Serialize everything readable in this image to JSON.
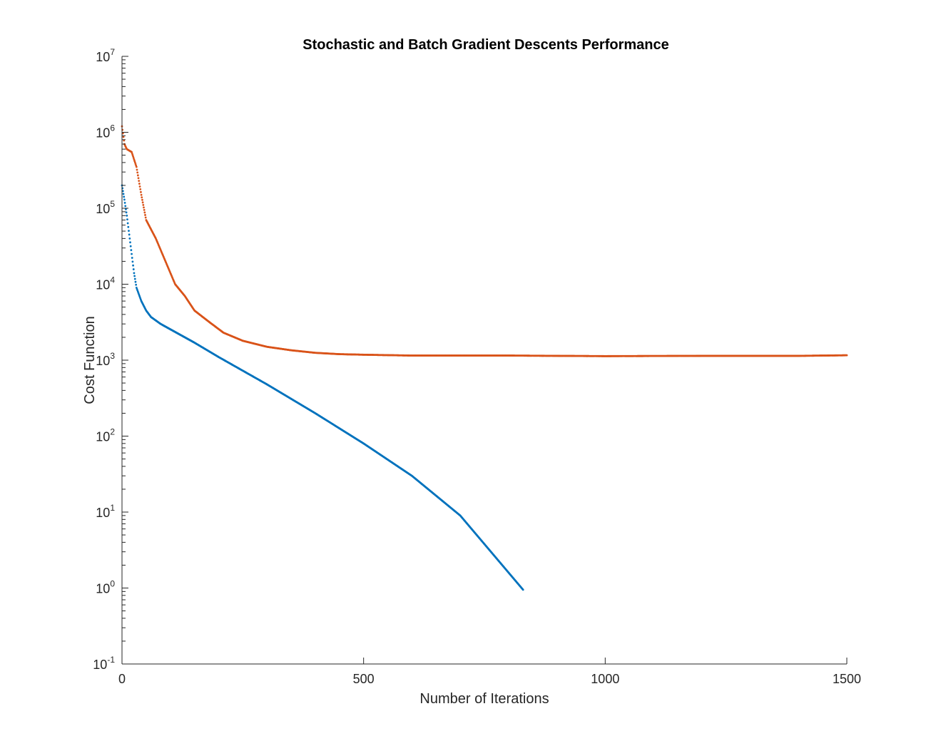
{
  "chart_data": {
    "type": "scatter",
    "title": "Stochastic and Batch Gradient Descents Performance",
    "xlabel": "Number of Iterations",
    "ylabel": "Cost Function",
    "xlim": [
      0,
      1500
    ],
    "ylim": [
      0.1,
      10000000
    ],
    "yscale": "log",
    "grid": false,
    "legend": "none",
    "x_ticks": [
      "0",
      "500",
      "1000",
      "1500"
    ],
    "y_ticks": [
      {
        "base": "10",
        "exp": "7"
      },
      {
        "base": "10",
        "exp": "6"
      },
      {
        "base": "10",
        "exp": "5"
      },
      {
        "base": "10",
        "exp": "4"
      },
      {
        "base": "10",
        "exp": "3"
      },
      {
        "base": "10",
        "exp": "2"
      },
      {
        "base": "10",
        "exp": "1"
      },
      {
        "base": "10",
        "exp": "0"
      },
      {
        "base": "10",
        "exp": "-1"
      }
    ],
    "series": [
      {
        "color": "#0072BD",
        "marker": "dot",
        "points": [
          [
            0,
            200000
          ],
          [
            5,
            130000
          ],
          [
            10,
            80000
          ],
          [
            15,
            45000
          ],
          [
            20,
            25000
          ],
          [
            25,
            14000
          ],
          [
            30,
            9000
          ],
          [
            40,
            6000
          ],
          [
            50,
            4500
          ],
          [
            60,
            3700
          ],
          [
            80,
            3000
          ],
          [
            150,
            1700
          ],
          [
            200,
            1100
          ],
          [
            300,
            480
          ],
          [
            400,
            200
          ],
          [
            500,
            80
          ],
          [
            600,
            30
          ],
          [
            700,
            9
          ],
          [
            830,
            0.95
          ]
        ]
      },
      {
        "color": "#D95319",
        "marker": "dot",
        "points": [
          [
            0,
            1200000
          ],
          [
            5,
            700000
          ],
          [
            10,
            600000
          ],
          [
            20,
            550000
          ],
          [
            30,
            350000
          ],
          [
            40,
            150000
          ],
          [
            50,
            70000
          ],
          [
            70,
            40000
          ],
          [
            90,
            20000
          ],
          [
            110,
            10000
          ],
          [
            130,
            7000
          ],
          [
            150,
            4500
          ],
          [
            180,
            3200
          ],
          [
            210,
            2300
          ],
          [
            250,
            1800
          ],
          [
            300,
            1500
          ],
          [
            350,
            1350
          ],
          [
            400,
            1250
          ],
          [
            450,
            1200
          ],
          [
            500,
            1180
          ],
          [
            600,
            1150
          ],
          [
            800,
            1150
          ],
          [
            1000,
            1130
          ],
          [
            1200,
            1140
          ],
          [
            1400,
            1140
          ],
          [
            1500,
            1160
          ]
        ]
      }
    ]
  }
}
